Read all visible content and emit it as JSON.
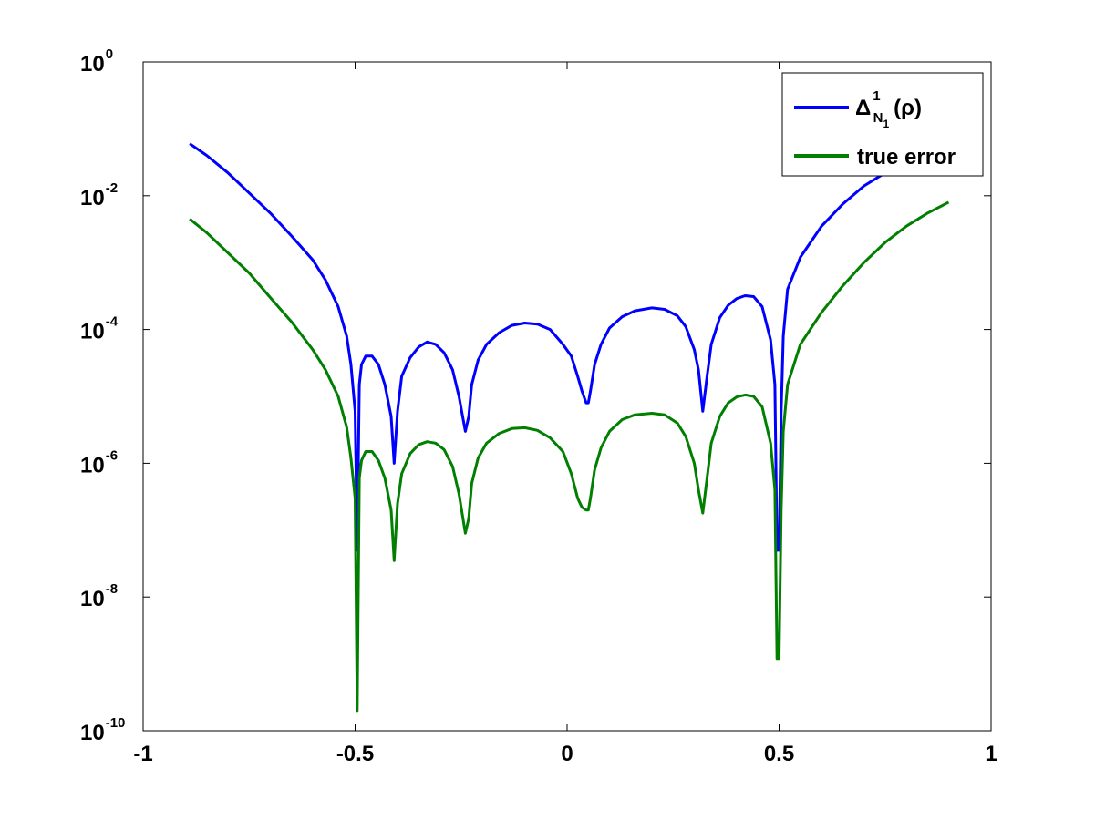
{
  "chart_data": {
    "type": "line",
    "title": "",
    "xlabel": "",
    "ylabel": "",
    "xlim": [
      -1,
      1
    ],
    "ylim": [
      1e-10,
      1
    ],
    "yscale": "log",
    "grid": false,
    "legend_position": "top-right",
    "xticks": [
      {
        "value": -1,
        "label": "-1"
      },
      {
        "value": -0.5,
        "label": "-0.5"
      },
      {
        "value": 0,
        "label": "0"
      },
      {
        "value": 0.5,
        "label": "0.5"
      },
      {
        "value": 1,
        "label": "1"
      }
    ],
    "yticks": [
      {
        "value": 1e-10,
        "base": "10",
        "exp": "-10"
      },
      {
        "value": 1e-08,
        "base": "10",
        "exp": "-8"
      },
      {
        "value": 1e-06,
        "base": "10",
        "exp": "-6"
      },
      {
        "value": 0.0001,
        "base": "10",
        "exp": "-4"
      },
      {
        "value": 0.01,
        "base": "10",
        "exp": "-2"
      },
      {
        "value": 1,
        "base": "10",
        "exp": "0"
      }
    ],
    "series": [
      {
        "name": "Δ_{N_1}^1(ρ)",
        "legend": {
          "delta": "Δ",
          "sub": "N",
          "subsub": "1",
          "sup": "1",
          "arg": "(ρ)"
        },
        "color": "#0000ff",
        "x": [
          -0.89,
          -0.85,
          -0.8,
          -0.75,
          -0.7,
          -0.65,
          -0.6,
          -0.57,
          -0.54,
          -0.52,
          -0.51,
          -0.5,
          -0.495,
          -0.49,
          -0.485,
          -0.475,
          -0.46,
          -0.445,
          -0.43,
          -0.415,
          -0.408,
          -0.4,
          -0.39,
          -0.37,
          -0.35,
          -0.33,
          -0.31,
          -0.29,
          -0.27,
          -0.255,
          -0.24,
          -0.232,
          -0.225,
          -0.21,
          -0.19,
          -0.16,
          -0.13,
          -0.1,
          -0.07,
          -0.04,
          -0.01,
          0.01,
          0.025,
          0.035,
          0.045,
          0.05,
          0.055,
          0.065,
          0.08,
          0.1,
          0.13,
          0.16,
          0.2,
          0.23,
          0.26,
          0.28,
          0.3,
          0.31,
          0.32,
          0.33,
          0.34,
          0.36,
          0.38,
          0.4,
          0.42,
          0.44,
          0.46,
          0.48,
          0.49,
          0.495,
          0.5,
          0.505,
          0.51,
          0.52,
          0.55,
          0.6,
          0.65,
          0.7,
          0.75,
          0.8,
          0.85,
          0.9
        ],
        "y": [
          0.06,
          0.04,
          0.022,
          0.011,
          0.0055,
          0.0025,
          0.0011,
          0.00055,
          0.00022,
          8e-05,
          3e-05,
          6e-06,
          5e-08,
          1.5e-05,
          3e-05,
          4e-05,
          4e-05,
          3e-05,
          1.5e-05,
          5e-06,
          1e-06,
          6e-06,
          2e-05,
          3.8e-05,
          5.5e-05,
          6.5e-05,
          6e-05,
          4.5e-05,
          2.5e-05,
          1e-05,
          3e-06,
          5e-06,
          1.5e-05,
          3.5e-05,
          6e-05,
          9e-05,
          0.000115,
          0.000125,
          0.00012,
          0.0001,
          6e-05,
          4e-05,
          2e-05,
          1.2e-05,
          8e-06,
          8e-06,
          1.2e-05,
          3e-05,
          6e-05,
          0.000105,
          0.000155,
          0.00019,
          0.00021,
          0.0002,
          0.00016,
          0.00011,
          5e-05,
          2.5e-05,
          6e-06,
          2e-05,
          6e-05,
          0.00015,
          0.00023,
          0.00029,
          0.00032,
          0.00031,
          0.00022,
          7e-05,
          1.5e-05,
          5e-08,
          5e-08,
          6e-06,
          8e-05,
          0.0004,
          0.0012,
          0.0035,
          0.0075,
          0.014,
          0.022,
          0.032,
          0.045,
          0.06
        ]
      },
      {
        "name": "true error",
        "color": "#007f00",
        "x": [
          -0.89,
          -0.85,
          -0.8,
          -0.75,
          -0.7,
          -0.65,
          -0.6,
          -0.57,
          -0.54,
          -0.52,
          -0.51,
          -0.5,
          -0.495,
          -0.49,
          -0.485,
          -0.475,
          -0.46,
          -0.445,
          -0.43,
          -0.415,
          -0.408,
          -0.4,
          -0.39,
          -0.37,
          -0.35,
          -0.33,
          -0.31,
          -0.29,
          -0.27,
          -0.255,
          -0.24,
          -0.232,
          -0.225,
          -0.21,
          -0.19,
          -0.16,
          -0.13,
          -0.1,
          -0.07,
          -0.04,
          -0.01,
          0.01,
          0.025,
          0.035,
          0.045,
          0.05,
          0.055,
          0.065,
          0.08,
          0.1,
          0.13,
          0.16,
          0.2,
          0.23,
          0.26,
          0.28,
          0.3,
          0.31,
          0.32,
          0.33,
          0.34,
          0.36,
          0.38,
          0.4,
          0.42,
          0.44,
          0.46,
          0.48,
          0.49,
          0.495,
          0.5,
          0.505,
          0.51,
          0.52,
          0.55,
          0.6,
          0.65,
          0.7,
          0.75,
          0.8,
          0.85,
          0.9
        ],
        "y": [
          0.0045,
          0.0028,
          0.0014,
          0.0007,
          0.0003,
          0.00013,
          5e-05,
          2.5e-05,
          1e-05,
          3.5e-06,
          1.2e-06,
          3e-07,
          2e-10,
          6e-07,
          1.1e-06,
          1.5e-06,
          1.5e-06,
          1.1e-06,
          6e-07,
          2e-07,
          3.5e-08,
          2.5e-07,
          7e-07,
          1.4e-06,
          1.9e-06,
          2.1e-06,
          2e-06,
          1.6e-06,
          9e-07,
          3.5e-07,
          9e-08,
          1.5e-07,
          5e-07,
          1.2e-06,
          2e-06,
          2.8e-06,
          3.3e-06,
          3.4e-06,
          3.1e-06,
          2.4e-06,
          1.5e-06,
          7e-07,
          3e-07,
          2.2e-07,
          2e-07,
          2e-07,
          3e-07,
          8e-07,
          1.7e-06,
          3e-06,
          4.5e-06,
          5.3e-06,
          5.6e-06,
          5.3e-06,
          4e-06,
          2.5e-06,
          1e-06,
          4e-07,
          1.8e-07,
          6e-07,
          2e-06,
          5e-06,
          8e-06,
          9.8e-06,
          1.05e-05,
          1e-05,
          7e-06,
          2e-06,
          4e-07,
          1.2e-09,
          1.2e-09,
          2e-07,
          3e-06,
          1.5e-05,
          6e-05,
          0.00018,
          0.00045,
          0.001,
          0.002,
          0.0035,
          0.0055,
          0.008
        ]
      }
    ]
  }
}
